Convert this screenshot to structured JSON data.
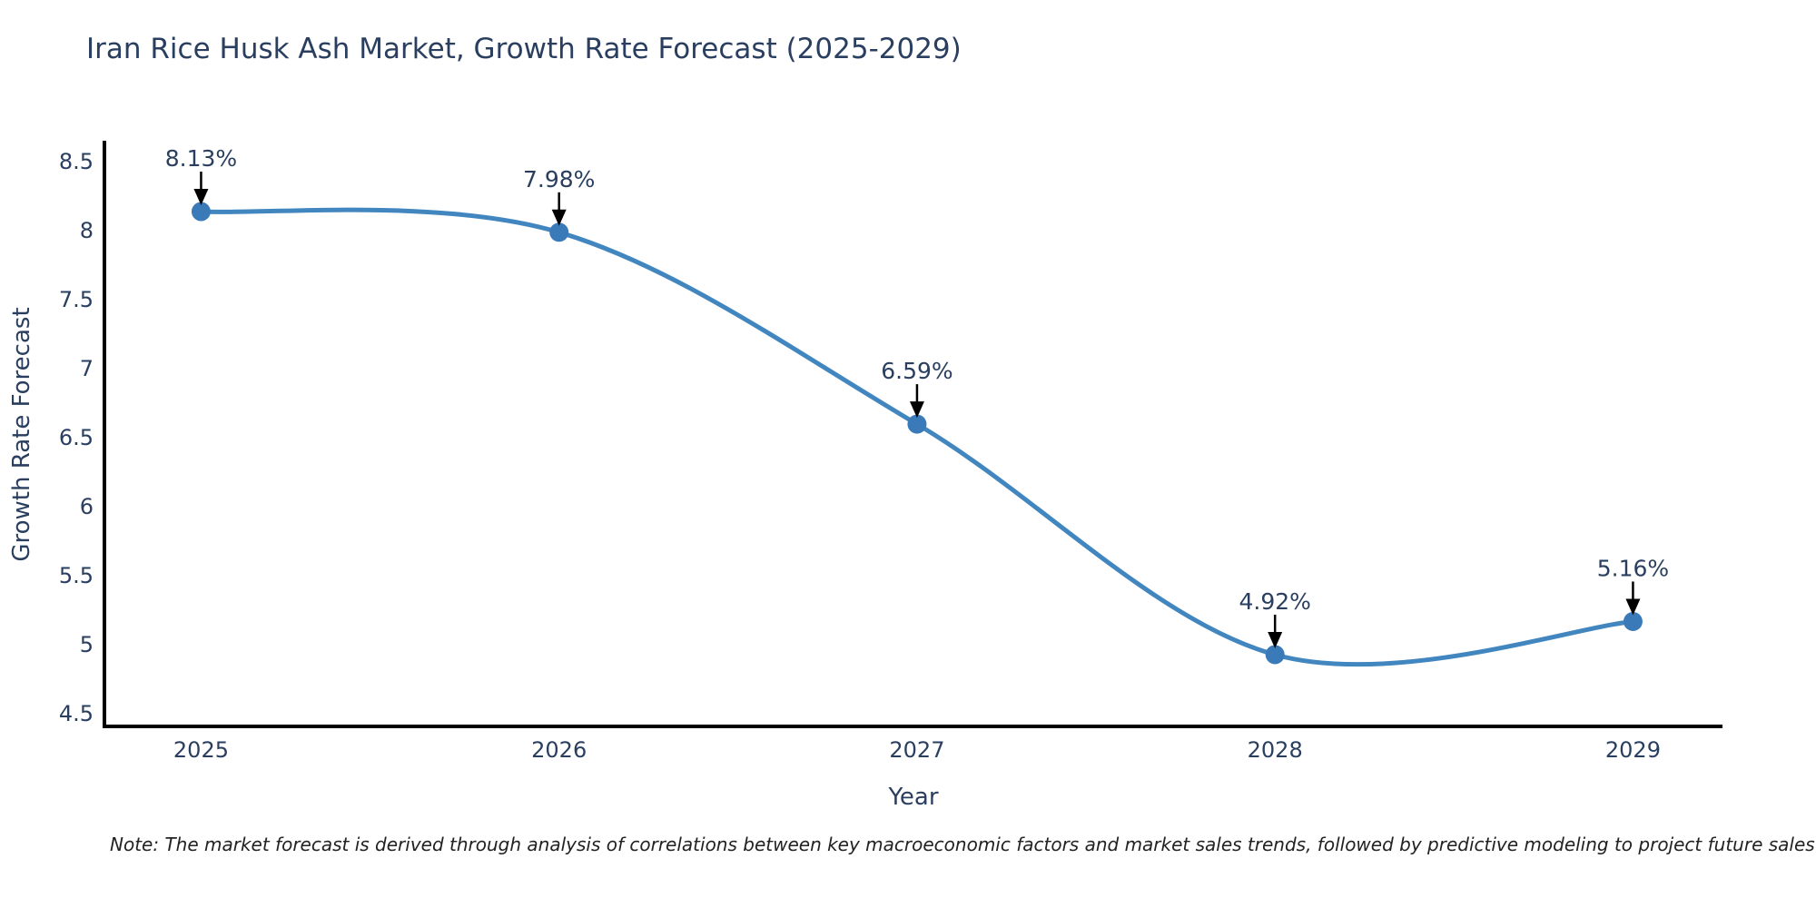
{
  "chart_data": {
    "type": "line",
    "title": "Iran Rice Husk Ash Market, Growth Rate Forecast (2025-2029)",
    "xlabel": "Year",
    "ylabel": "Growth Rate Forecast",
    "categories": [
      2025,
      2026,
      2027,
      2028,
      2029
    ],
    "values": [
      8.13,
      7.98,
      6.59,
      4.92,
      5.16
    ],
    "point_labels": [
      "8.13%",
      "7.98%",
      "6.59%",
      "4.92%",
      "5.16%"
    ],
    "yticks": [
      4.5,
      5,
      5.5,
      6,
      6.5,
      7,
      7.5,
      8,
      8.5
    ],
    "ylim": [
      4.4,
      8.63
    ],
    "xlim": [
      2024.73,
      2029.25
    ],
    "curve": "spline",
    "grid": false,
    "legend": false,
    "line_color": "#4286c0",
    "marker_color": "#3a7ab8",
    "arrow_color": "#000000",
    "axis_color": "#000000",
    "text_color": "#2a3f5f",
    "note": "Note: The market forecast is derived through analysis of correlations between key macroeconomic factors and market sales trends, followed by predictive modeling to project future sales"
  }
}
